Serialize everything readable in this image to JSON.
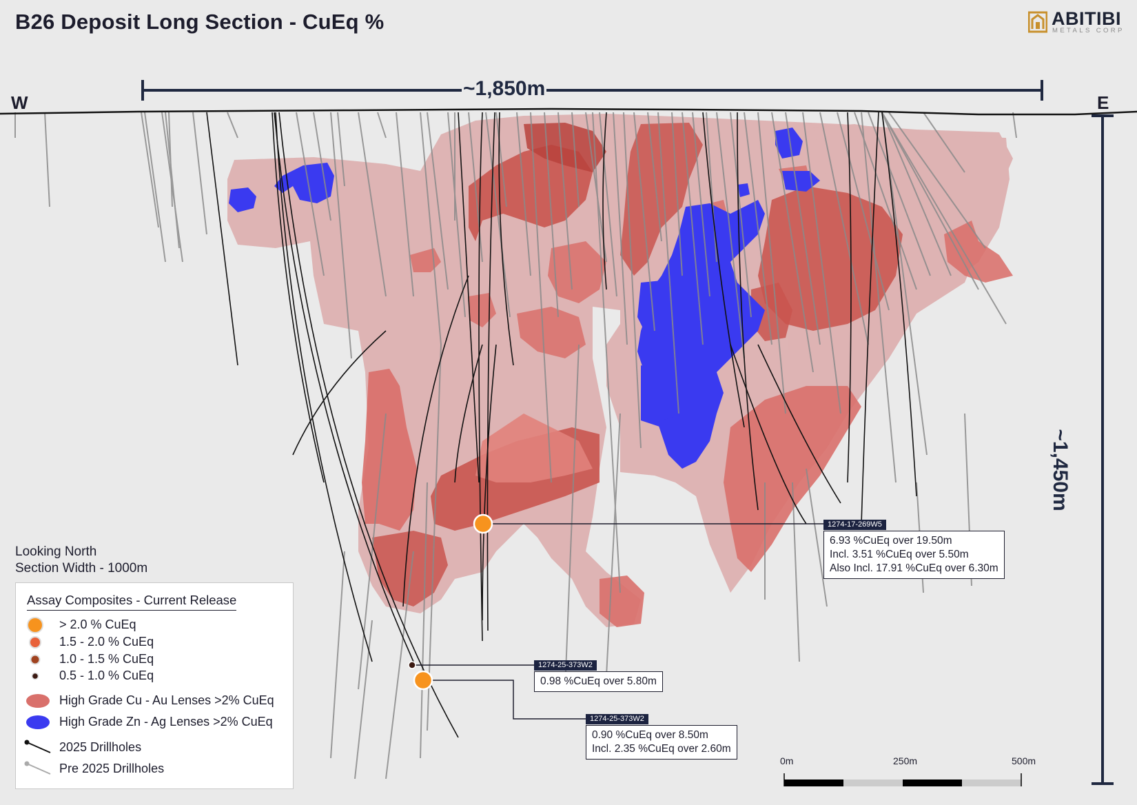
{
  "title": "B26 Deposit Long Section - CuEq %",
  "logo": {
    "word": "ABITIBI",
    "sub": "METALS CORP"
  },
  "directions": {
    "west": "W",
    "east": "E"
  },
  "dimensions": {
    "width_label": "~1,850m",
    "depth_label": "~1,450m"
  },
  "notes": {
    "view": "Looking North",
    "section_width": "Section Width - 1000m"
  },
  "legend": {
    "title": "Assay Composites - Current Release",
    "items": [
      {
        "label": "> 2.0 % CuEq",
        "symbol": "dot-orange",
        "color": "#f7931e"
      },
      {
        "label": "1.5 - 2.0 % CuEq",
        "symbol": "dot-red-orange",
        "color": "#e8613a"
      },
      {
        "label": "1.0 - 1.5 % CuEq",
        "symbol": "dot-brown",
        "color": "#a0421f"
      },
      {
        "label": "0.5 - 1.0 % CuEq",
        "symbol": "dot-dark",
        "color": "#3b1a12"
      },
      {
        "label": "High Grade Cu - Au Lenses >2% CuEq",
        "symbol": "blob-red",
        "color": "#d9706b"
      },
      {
        "label": "High Grade Zn - Ag Lenses >2% CuEq",
        "symbol": "blob-blue",
        "color": "#3a3af0"
      },
      {
        "label": "2025 Drillholes",
        "symbol": "line-black",
        "color": "#111111"
      },
      {
        "label": "Pre 2025 Drillholes",
        "symbol": "line-grey",
        "color": "#aaaaaa"
      }
    ]
  },
  "callouts": [
    {
      "hole": "1274-17-269W5",
      "lines": [
        "6.93 %CuEq over 19.50m",
        "Incl. 3.51 %CuEq over 5.50m",
        "Also Incl. 17.91 %CuEq over 6.30m"
      ]
    },
    {
      "hole": "1274-25-373W2",
      "lines": [
        "0.98 %CuEq over 5.80m"
      ]
    },
    {
      "hole": "1274-25-373W2",
      "lines": [
        "0.90 %CuEq over 8.50m",
        "Incl. 2.35 %CuEq over 2.60m"
      ]
    }
  ],
  "scale_bar": {
    "labels": [
      "0m",
      "250m",
      "500m"
    ]
  },
  "colors": {
    "background": "#eaeaea",
    "envelope": "#dcaaaa",
    "cu_lens": "#d9706b",
    "cu_lens_dark": "#b9423c",
    "zn_lens": "#3a3af0",
    "marker_high": "#f7931e",
    "label_navy": "#1c2340"
  }
}
